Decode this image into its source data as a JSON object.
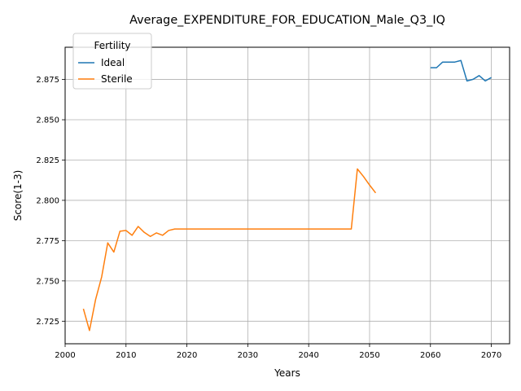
{
  "chart_data": {
    "type": "line",
    "title": "Average_EXPENDITURE_FOR_EDUCATION_Male_Q3_IQ",
    "xlabel": "Years",
    "ylabel": "Score(1-3)",
    "xlim": [
      2000,
      2073
    ],
    "ylim": [
      2.711,
      2.895
    ],
    "xticks": [
      2000,
      2010,
      2020,
      2030,
      2040,
      2050,
      2060,
      2070
    ],
    "xtick_labels": [
      "2000",
      "2010",
      "2020",
      "2030",
      "2040",
      "2050",
      "2060",
      "2070"
    ],
    "yticks": [
      2.725,
      2.75,
      2.775,
      2.8,
      2.825,
      2.85,
      2.875
    ],
    "ytick_labels": [
      "2.725",
      "2.750",
      "2.775",
      "2.800",
      "2.825",
      "2.850",
      "2.875"
    ],
    "grid": true,
    "legend": {
      "title": "Fertility",
      "placement": "top-left"
    },
    "series": [
      {
        "name": "Ideal",
        "color": "#1f77b4",
        "x": [
          2060,
          2061,
          2062,
          2063,
          2064,
          2065,
          2066,
          2067,
          2068,
          2069,
          2070
        ],
        "y": [
          2.8823,
          2.8823,
          2.8858,
          2.8858,
          2.8858,
          2.8868,
          2.8741,
          2.8751,
          2.8774,
          2.8741,
          2.8762
        ]
      },
      {
        "name": "Sterile",
        "color": "#ff7f0e",
        "x": [
          2003,
          2004,
          2005,
          2006,
          2007,
          2008,
          2009,
          2010,
          2011,
          2012,
          2013,
          2014,
          2015,
          2016,
          2017,
          2018,
          2019,
          2020,
          2030,
          2040,
          2047,
          2048,
          2049,
          2050,
          2051
        ],
        "y": [
          2.7327,
          2.7192,
          2.7384,
          2.7525,
          2.7736,
          2.7679,
          2.7808,
          2.7813,
          2.7783,
          2.7838,
          2.7801,
          2.7776,
          2.7798,
          2.7783,
          2.7813,
          2.7822,
          2.7822,
          2.7822,
          2.7822,
          2.7822,
          2.7822,
          2.8195,
          2.8148,
          2.8095,
          2.8046
        ]
      }
    ]
  }
}
